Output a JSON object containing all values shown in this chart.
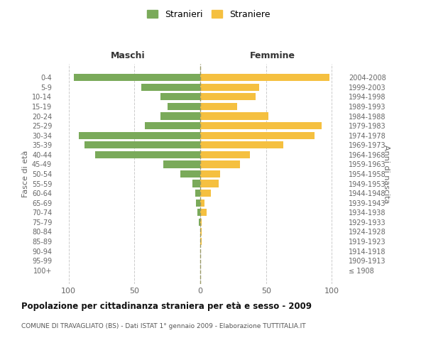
{
  "age_groups": [
    "100+",
    "95-99",
    "90-94",
    "85-89",
    "80-84",
    "75-79",
    "70-74",
    "65-69",
    "60-64",
    "55-59",
    "50-54",
    "45-49",
    "40-44",
    "35-39",
    "30-34",
    "25-29",
    "20-24",
    "15-19",
    "10-14",
    "5-9",
    "0-4"
  ],
  "birth_years": [
    "≤ 1908",
    "1909-1913",
    "1914-1918",
    "1919-1923",
    "1924-1928",
    "1929-1933",
    "1934-1938",
    "1939-1943",
    "1944-1948",
    "1949-1953",
    "1954-1958",
    "1959-1963",
    "1964-1968",
    "1969-1973",
    "1974-1978",
    "1979-1983",
    "1984-1988",
    "1989-1993",
    "1994-1998",
    "1999-2003",
    "2004-2008"
  ],
  "maschi": [
    0,
    0,
    0,
    0,
    0,
    1,
    2,
    3,
    4,
    6,
    15,
    28,
    80,
    88,
    92,
    42,
    30,
    25,
    30,
    45,
    96
  ],
  "femmine": [
    0,
    0,
    0,
    1,
    1,
    1,
    5,
    3,
    8,
    14,
    15,
    30,
    38,
    63,
    87,
    92,
    52,
    28,
    42,
    45,
    98
  ],
  "male_color": "#7aaa5a",
  "female_color": "#f5c040",
  "male_label": "Stranieri",
  "female_label": "Straniere",
  "title": "Popolazione per cittadinanza straniera per età e sesso - 2009",
  "subtitle": "COMUNE DI TRAVAGLIATO (BS) - Dati ISTAT 1° gennaio 2009 - Elaborazione TUTTITALIA.IT",
  "xlabel_left": "Maschi",
  "xlabel_right": "Femmine",
  "ylabel_left": "Fasce di età",
  "ylabel_right": "Anni di nascita",
  "xlim": 110,
  "background_color": "#ffffff",
  "grid_color": "#cccccc"
}
